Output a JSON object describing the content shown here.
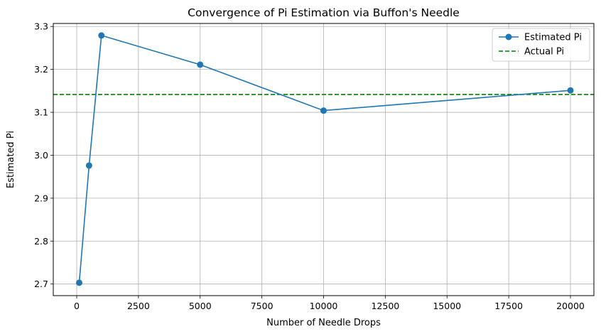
{
  "chart_data": {
    "type": "line",
    "title": "Convergence of Pi Estimation via Buffon's Needle",
    "xlabel": "Number of Needle Drops",
    "ylabel": "Estimated Pi",
    "xlim": [
      -950,
      20950
    ],
    "ylim": [
      2.673,
      3.307
    ],
    "xticks": [
      0,
      2500,
      5000,
      7500,
      10000,
      12500,
      15000,
      17500,
      20000
    ],
    "yticks": [
      2.7,
      2.8,
      2.9,
      3.0,
      3.1,
      3.2,
      3.3
    ],
    "xtick_labels": [
      "0",
      "2500",
      "5000",
      "7500",
      "10000",
      "12500",
      "15000",
      "17500",
      "20000"
    ],
    "ytick_labels": [
      "2.7",
      "2.8",
      "2.9",
      "3.0",
      "3.1",
      "3.2",
      "3.3"
    ],
    "grid": true,
    "legend_position": "top-right",
    "series": [
      {
        "name": "Estimated Pi",
        "style": "solid-marker",
        "color": "#1f77b4",
        "x": [
          100,
          500,
          1000,
          5000,
          10000,
          20000
        ],
        "y": [
          2.703,
          2.976,
          3.279,
          3.211,
          3.104,
          3.151
        ]
      }
    ],
    "reference_lines": [
      {
        "name": "Actual Pi",
        "orientation": "horizontal",
        "value": 3.14159,
        "style": "dashed",
        "color": "#008000"
      }
    ]
  }
}
